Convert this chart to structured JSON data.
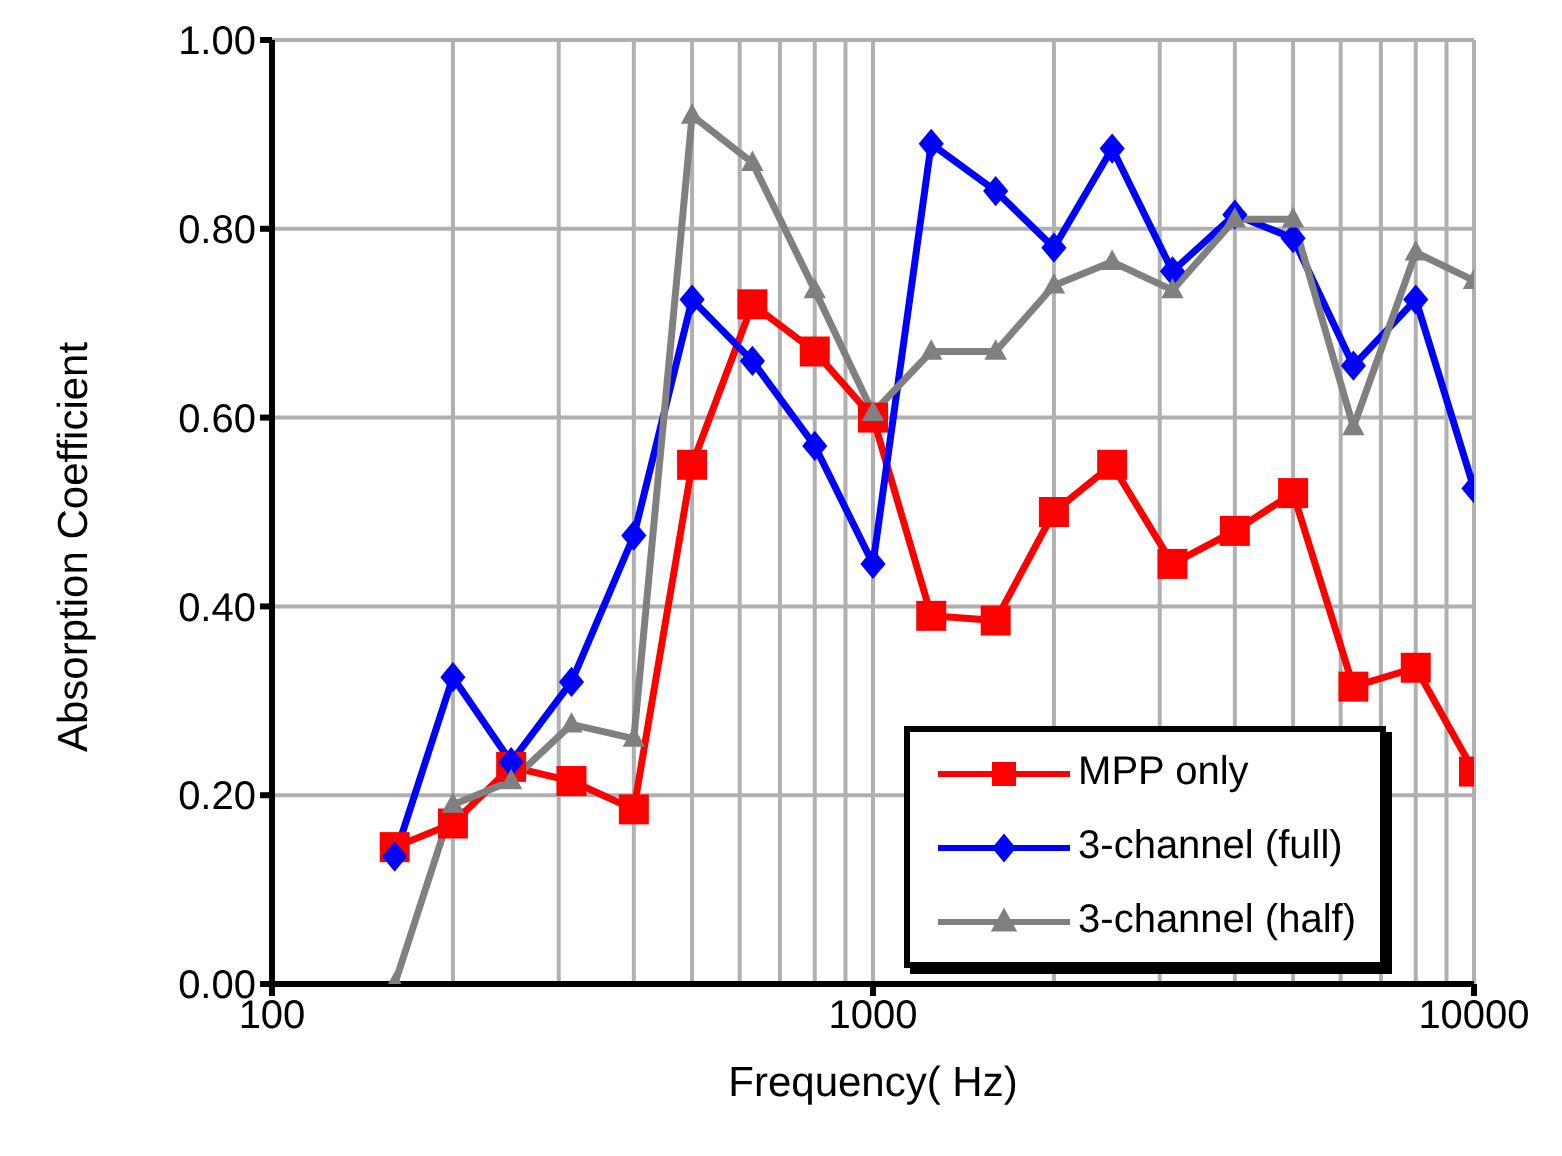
{
  "chart_data": {
    "type": "line",
    "xlabel": "Frequency( Hz)",
    "ylabel": "Absorption Coefficient",
    "x": [
      160,
      200,
      250,
      315,
      400,
      500,
      630,
      800,
      1000,
      1250,
      1600,
      2000,
      2500,
      3150,
      4000,
      5000,
      6300,
      8000,
      10000
    ],
    "series": [
      {
        "name": "MPP only",
        "color": "#ff0000",
        "marker": "square",
        "values": [
          0.145,
          0.17,
          0.23,
          0.215,
          0.185,
          0.55,
          0.72,
          0.67,
          0.6,
          0.39,
          0.385,
          0.5,
          0.55,
          0.445,
          0.48,
          0.52,
          0.315,
          0.335,
          0.225
        ]
      },
      {
        "name": "3-channel (full)",
        "color": "#0000ff",
        "marker": "diamond",
        "values": [
          0.135,
          0.325,
          0.235,
          0.32,
          0.475,
          0.725,
          0.66,
          0.57,
          0.445,
          0.89,
          0.84,
          0.78,
          0.885,
          0.755,
          0.815,
          0.79,
          0.655,
          0.725,
          0.525
        ]
      },
      {
        "name": "3-channel (half)",
        "color": "#808080",
        "marker": "triangle",
        "values": [
          0.0,
          0.19,
          0.215,
          0.275,
          0.26,
          0.92,
          0.87,
          0.735,
          0.605,
          0.67,
          0.67,
          0.74,
          0.765,
          0.735,
          0.81,
          0.81,
          0.59,
          0.775,
          0.745
        ]
      }
    ],
    "log": "x",
    "xlim": [
      100,
      10000
    ],
    "xticks": [
      100,
      1000,
      10000
    ],
    "ylim": [
      0,
      1
    ],
    "yticks": [
      {
        "value": 0,
        "label": "0.00"
      },
      {
        "value": 0.2,
        "label": "0.20"
      },
      {
        "value": 0.4,
        "label": "0.40"
      },
      {
        "value": 0.6,
        "label": "0.60"
      },
      {
        "value": 0.8,
        "label": "0.80"
      },
      {
        "value": 1,
        "label": "1.00"
      }
    ],
    "grid": true,
    "legend": "bottom right",
    "line_style": "solid"
  }
}
